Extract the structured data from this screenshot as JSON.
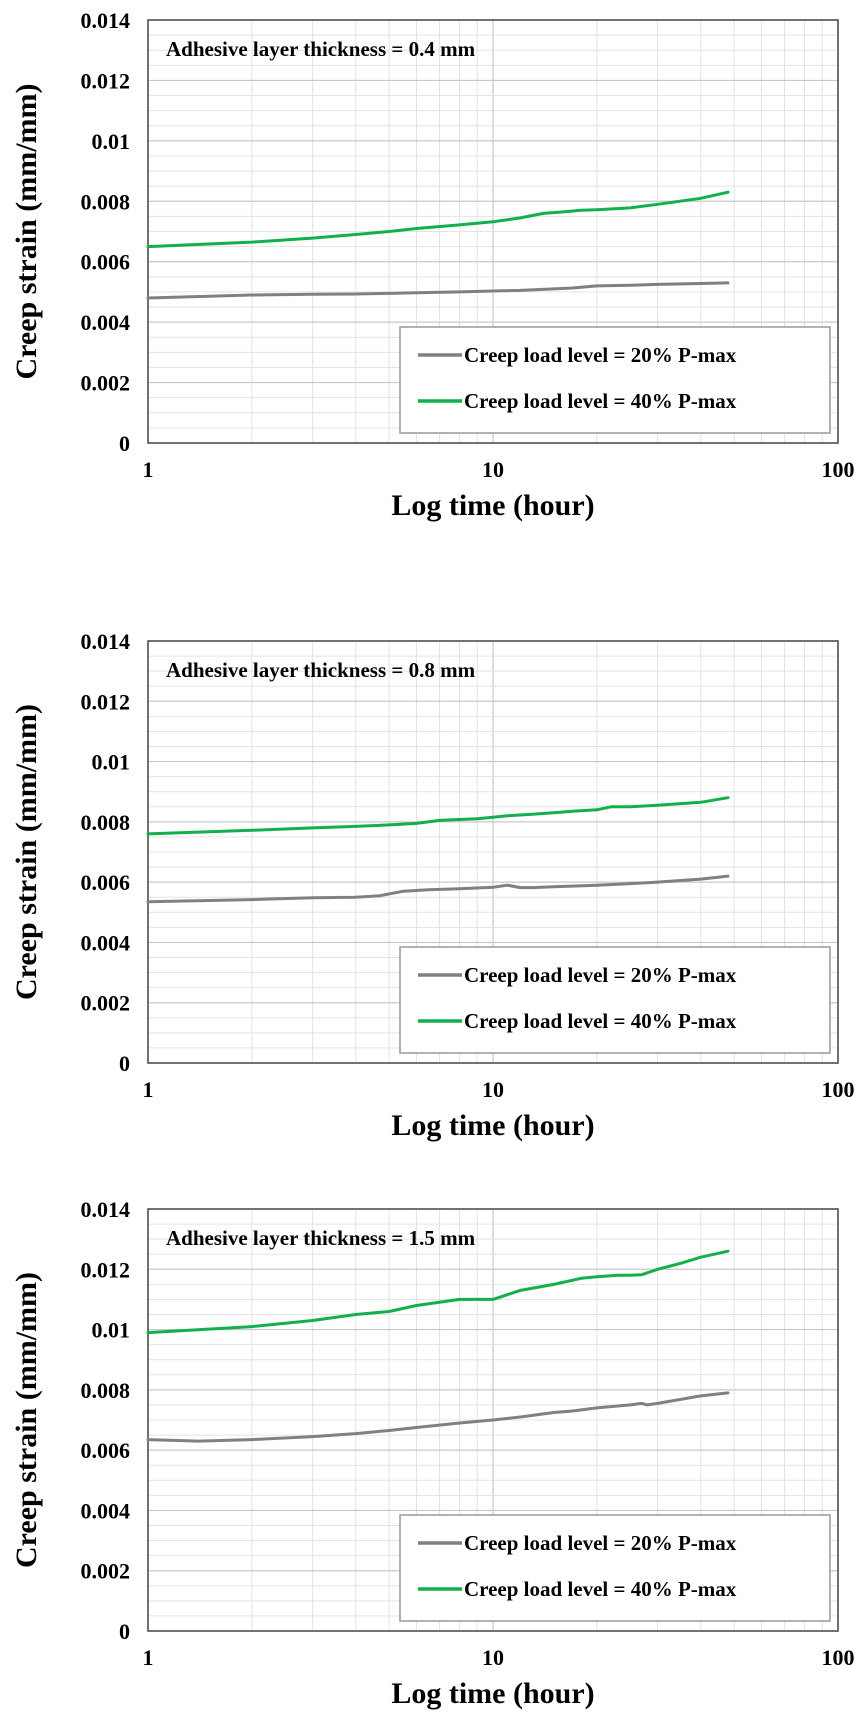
{
  "colors": {
    "series_20": "#808080",
    "series_40": "#12b04a",
    "grid_minor": "#e3e3e3",
    "grid_major": "#c8c8c8",
    "frame": "#444444"
  },
  "chart_data": [
    {
      "type": "line",
      "annotation": "Adhesive layer thickness = 0.4 mm",
      "xlabel": "Log time (hour)",
      "ylabel": "Creep strain (mm/mm)",
      "xscale": "log",
      "xlim": [
        1,
        100
      ],
      "ylim": [
        0,
        0.014
      ],
      "xticks": [
        "1",
        "10",
        "100"
      ],
      "yticks": [
        "0",
        "0.002",
        "0.004",
        "0.006",
        "0.008",
        "0.01",
        "0.012",
        "0.014"
      ],
      "grid": true,
      "legend_position": "bottom-right",
      "series": [
        {
          "name": "Creep load level = 20% P-max",
          "color": "#808080",
          "x": [
            1,
            2,
            3,
            4,
            5,
            6,
            8,
            10,
            12,
            15,
            17,
            20,
            25,
            30,
            40,
            48
          ],
          "y": [
            0.0048,
            0.0049,
            0.00492,
            0.00493,
            0.00495,
            0.00497,
            0.005,
            0.00503,
            0.00505,
            0.0051,
            0.00513,
            0.0052,
            0.00522,
            0.00525,
            0.00528,
            0.0053
          ]
        },
        {
          "name": "Creep load level = 40% P-max",
          "color": "#12b04a",
          "x": [
            1,
            2,
            3,
            4,
            5,
            6,
            8,
            10,
            12,
            14,
            16,
            18,
            20,
            25,
            30,
            40,
            48
          ],
          "y": [
            0.0065,
            0.00665,
            0.00678,
            0.0069,
            0.007,
            0.0071,
            0.00722,
            0.00732,
            0.00745,
            0.0076,
            0.00765,
            0.0077,
            0.00772,
            0.00778,
            0.0079,
            0.0081,
            0.0083
          ]
        }
      ]
    },
    {
      "type": "line",
      "annotation": "Adhesive layer thickness = 0.8 mm",
      "xlabel": "Log time (hour)",
      "ylabel": "Creep strain (mm/mm)",
      "xscale": "log",
      "xlim": [
        1,
        100
      ],
      "ylim": [
        0,
        0.014
      ],
      "xticks": [
        "1",
        "10",
        "100"
      ],
      "yticks": [
        "0",
        "0.002",
        "0.004",
        "0.006",
        "0.008",
        "0.01",
        "0.012",
        "0.014"
      ],
      "grid": true,
      "legend_position": "bottom-right",
      "series": [
        {
          "name": "Creep load level = 20% P-max",
          "color": "#808080",
          "x": [
            1,
            2,
            3,
            4,
            4.7,
            5.5,
            6.5,
            8,
            10,
            11,
            12,
            13,
            15,
            20,
            25,
            30,
            40,
            48
          ],
          "y": [
            0.00535,
            0.00542,
            0.00548,
            0.0055,
            0.00555,
            0.0057,
            0.00575,
            0.00578,
            0.00583,
            0.0059,
            0.00582,
            0.00582,
            0.00585,
            0.0059,
            0.00595,
            0.006,
            0.0061,
            0.0062
          ]
        },
        {
          "name": "Creep load level = 40% P-max",
          "color": "#12b04a",
          "x": [
            1,
            2,
            3,
            4,
            5,
            6,
            7,
            9,
            10,
            11,
            13,
            15,
            17,
            20,
            22,
            25,
            30,
            40,
            48
          ],
          "y": [
            0.0076,
            0.00772,
            0.0078,
            0.00785,
            0.0079,
            0.00795,
            0.00805,
            0.0081,
            0.00815,
            0.0082,
            0.00825,
            0.0083,
            0.00835,
            0.0084,
            0.0085,
            0.0085,
            0.00855,
            0.00865,
            0.0088
          ]
        }
      ]
    },
    {
      "type": "line",
      "annotation": "Adhesive layer thickness = 1.5 mm",
      "xlabel": "Log time (hour)",
      "ylabel": "Creep strain (mm/mm)",
      "xscale": "log",
      "xlim": [
        1,
        100
      ],
      "ylim": [
        0,
        0.014
      ],
      "xticks": [
        "1",
        "10",
        "100"
      ],
      "yticks": [
        "0",
        "0.002",
        "0.004",
        "0.006",
        "0.008",
        "0.01",
        "0.012",
        "0.014"
      ],
      "grid": true,
      "legend_position": "bottom-right",
      "series": [
        {
          "name": "Creep load level = 20% P-max",
          "color": "#808080",
          "x": [
            1,
            1.4,
            2,
            3,
            4,
            5,
            6,
            8,
            10,
            12,
            15,
            17,
            20,
            25,
            27,
            28,
            30,
            40,
            48
          ],
          "y": [
            0.00635,
            0.0063,
            0.00635,
            0.00645,
            0.00655,
            0.00665,
            0.00675,
            0.0069,
            0.007,
            0.0071,
            0.00725,
            0.0073,
            0.0074,
            0.0075,
            0.00755,
            0.0075,
            0.00755,
            0.0078,
            0.0079
          ]
        },
        {
          "name": "Creep load level = 40% P-max",
          "color": "#12b04a",
          "x": [
            1,
            2,
            3,
            4,
            5,
            6,
            8,
            10,
            12,
            15,
            18,
            20,
            23,
            25,
            27,
            30,
            35,
            40,
            48
          ],
          "y": [
            0.0099,
            0.0101,
            0.0103,
            0.0105,
            0.0106,
            0.0108,
            0.011,
            0.011,
            0.0113,
            0.0115,
            0.0117,
            0.01175,
            0.0118,
            0.0118,
            0.01182,
            0.012,
            0.0122,
            0.0124,
            0.0126
          ]
        }
      ]
    }
  ]
}
